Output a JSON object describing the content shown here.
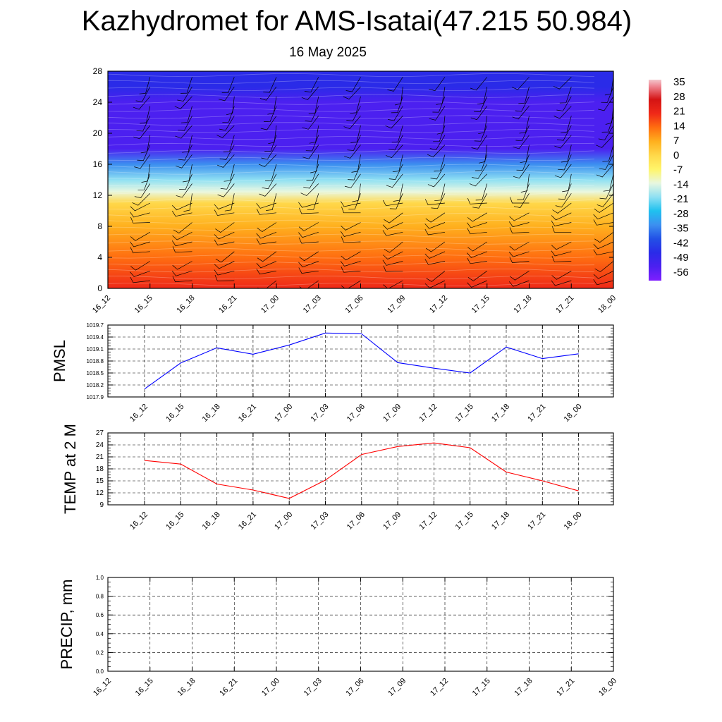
{
  "title": "Kazhydromet for AMS-Isatai(47.215 50.984)",
  "subtitle": "16 May 2025",
  "colors": {
    "pmsl_line": "#0000ff",
    "temp_line": "#ff0000",
    "precip_line": "#006400",
    "barb": "#000000"
  },
  "chart_data": [
    {
      "type": "heatmap",
      "panel": "vertical-cross-section",
      "x_categories": [
        "16_12",
        "16_15",
        "16_18",
        "16_21",
        "17_00",
        "17_03",
        "17_06",
        "17_09",
        "17_12",
        "17_15",
        "17_18",
        "17_21",
        "18_00"
      ],
      "y_ticks": [
        "0",
        "4",
        "8",
        "12",
        "16",
        "20",
        "24",
        "28"
      ],
      "ylim": [
        0,
        28
      ],
      "colorbar_labels": [
        "35",
        "28",
        "21",
        "14",
        "7",
        "0",
        "-7",
        "-14",
        "-21",
        "-28",
        "-35",
        "-42",
        "-49",
        "-56"
      ],
      "temperature_profile": [
        {
          "level": 0,
          "value": 20
        },
        {
          "level": 4,
          "value": 14
        },
        {
          "level": 8,
          "value": 5
        },
        {
          "level": 11,
          "value": -3
        },
        {
          "level": 12.5,
          "value": -14
        },
        {
          "level": 14,
          "value": -25
        },
        {
          "level": 16,
          "value": -40
        },
        {
          "level": 18,
          "value": -56
        },
        {
          "level": 21,
          "value": -60
        },
        {
          "level": 24,
          "value": -56
        },
        {
          "level": 26,
          "value": -53
        },
        {
          "level": 28,
          "value": -51
        }
      ],
      "wind_barbs": "wind barbs at every time step and level"
    },
    {
      "type": "line",
      "ylabel": "PMSL",
      "x": [
        "16_12",
        "16_15",
        "16_18",
        "16_21",
        "17_00",
        "17_03",
        "17_06",
        "17_09",
        "17_12",
        "17_15",
        "17_18",
        "17_21",
        "18_00"
      ],
      "yticks": [
        "1017.9",
        "1018.2",
        "1018.5",
        "1018.8",
        "1019.1",
        "1019.4",
        "1019.7"
      ],
      "ylim": [
        1017.9,
        1019.7
      ],
      "values": [
        1018.1,
        1018.75,
        1019.13,
        1018.97,
        1019.2,
        1019.5,
        1019.48,
        1018.76,
        1018.62,
        1018.5,
        1019.15,
        1018.86,
        1018.98
      ],
      "grid": true
    },
    {
      "type": "line",
      "ylabel": "TEMP at 2 M",
      "x": [
        "16_12",
        "16_15",
        "16_18",
        "16_21",
        "17_00",
        "17_03",
        "17_06",
        "17_09",
        "17_12",
        "17_15",
        "17_18",
        "17_21",
        "18_00"
      ],
      "yticks": [
        "9",
        "12",
        "15",
        "18",
        "21",
        "24",
        "27"
      ],
      "ylim": [
        9,
        27
      ],
      "values": [
        20.1,
        19.2,
        14.2,
        12.7,
        10.6,
        15.2,
        21.6,
        23.6,
        24.5,
        23.3,
        17.2,
        15.0,
        12.5
      ],
      "grid": true
    },
    {
      "type": "line",
      "ylabel": "PRECIP, mm",
      "x": [
        "16_12",
        "16_15",
        "16_18",
        "16_21",
        "17_00",
        "17_03",
        "17_06",
        "17_09",
        "17_12",
        "17_15",
        "17_18",
        "17_21",
        "18_00"
      ],
      "yticks": [
        "0.0",
        "0.2",
        "0.4",
        "0.6",
        "0.8",
        "1.0"
      ],
      "ylim": [
        0,
        1
      ],
      "values": [
        0,
        0,
        0,
        0,
        0,
        0,
        0,
        0,
        0,
        0,
        0,
        0,
        0
      ],
      "grid": true
    }
  ]
}
